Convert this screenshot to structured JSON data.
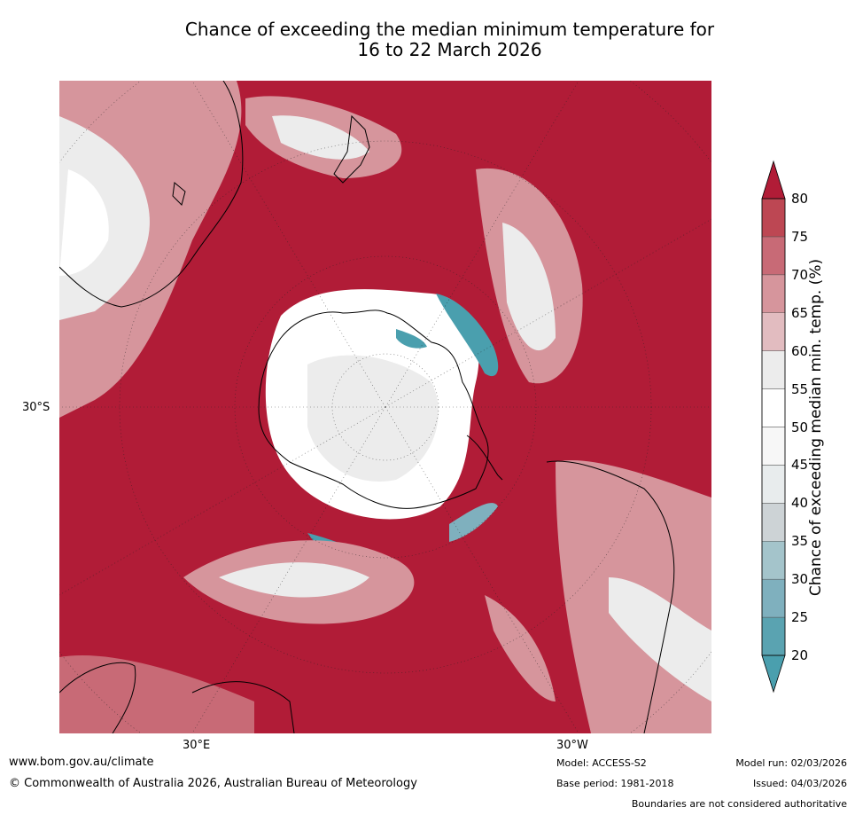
{
  "title_line1": "Chance of exceeding the median minimum temperature for",
  "title_line2": "16 to 22 March 2026",
  "axis_labels": {
    "lat": "30°S",
    "lon_east": "30°E",
    "lon_west": "30°W"
  },
  "colorbar": {
    "label": "Chance of exceeding median min. temp. (%)",
    "ticks": [
      "20",
      "25",
      "30",
      "35",
      "40",
      "45",
      "50",
      "55",
      "60",
      "65",
      "70",
      "75",
      "80"
    ],
    "colors": [
      "#5aa3b1",
      "#7fb0be",
      "#a4c4cb",
      "#cdd3d6",
      "#e8eced",
      "#f7f7f7",
      "#ffffff",
      "#ececec",
      "#e2bcc0",
      "#d6959c",
      "#c86a76",
      "#bd4753",
      "#b11c37"
    ],
    "under_color": "#4a9fae",
    "over_color": "#b11c37"
  },
  "map_colors": {
    "background": "#b11c37",
    "coast": "#000000"
  },
  "footer": {
    "website": "www.bom.gov.au/climate",
    "copyright": "© Commonwealth of Australia 2026, Australian Bureau of Meteorology",
    "model": "Model: ACCESS-S2",
    "base_period": "Base period: 1981-2018",
    "model_run": "Model run: 02/03/2026",
    "issued": "Issued: 04/03/2026",
    "disclaimer": "Boundaries are not considered authoritative"
  }
}
